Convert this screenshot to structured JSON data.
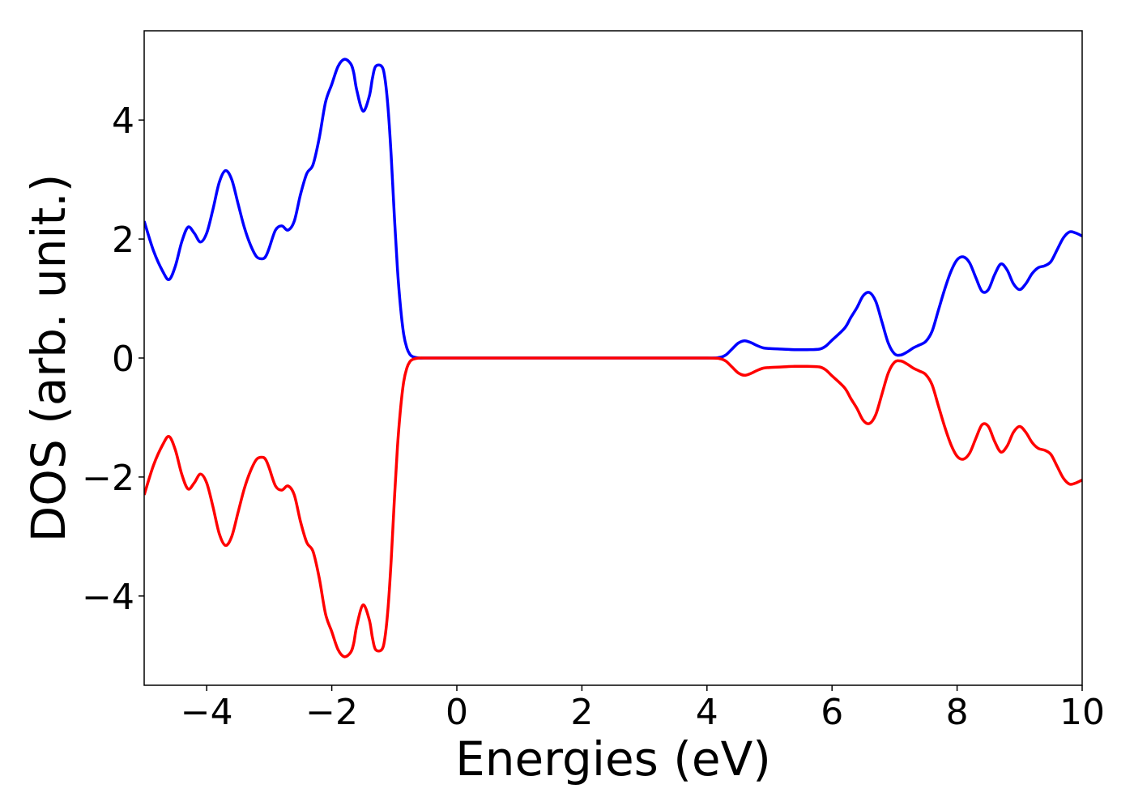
{
  "chart_data": {
    "type": "line",
    "xlabel": "Energies (eV)",
    "ylabel": "DOS (arb. unit.)",
    "xlim": [
      -5,
      10
    ],
    "ylim": [
      -5.5,
      5.5
    ],
    "grid": false,
    "legend": "none",
    "x_ticks": [
      {
        "value": -4,
        "label": "−4"
      },
      {
        "value": -2,
        "label": "−2"
      },
      {
        "value": 0,
        "label": "0"
      },
      {
        "value": 2,
        "label": "2"
      },
      {
        "value": 4,
        "label": "4"
      },
      {
        "value": 6,
        "label": "6"
      },
      {
        "value": 8,
        "label": "8"
      },
      {
        "value": 10,
        "label": "10"
      }
    ],
    "y_ticks": [
      {
        "value": -4,
        "label": "−4"
      },
      {
        "value": -2,
        "label": "−2"
      },
      {
        "value": 0,
        "label": "0"
      },
      {
        "value": 2,
        "label": "2"
      },
      {
        "value": 4,
        "label": "4"
      }
    ],
    "series": [
      {
        "color": "#0000ff",
        "x": [
          -5.0,
          -4.85,
          -4.7,
          -4.6,
          -4.5,
          -4.4,
          -4.3,
          -4.2,
          -4.1,
          -4.0,
          -3.9,
          -3.8,
          -3.7,
          -3.6,
          -3.5,
          -3.4,
          -3.3,
          -3.2,
          -3.1,
          -3.05,
          -3.0,
          -2.9,
          -2.8,
          -2.7,
          -2.6,
          -2.5,
          -2.4,
          -2.3,
          -2.2,
          -2.1,
          -2.0,
          -1.9,
          -1.8,
          -1.7,
          -1.65,
          -1.6,
          -1.5,
          -1.4,
          -1.35,
          -1.3,
          -1.2,
          -1.15,
          -1.1,
          -1.05,
          -1.0,
          -0.95,
          -0.9,
          -0.85,
          -0.8,
          -0.75,
          -0.7,
          -0.6,
          -0.5,
          -0.4,
          0.0,
          1.0,
          2.0,
          3.0,
          4.0,
          4.2,
          4.3,
          4.4,
          4.5,
          4.6,
          4.7,
          4.8,
          4.9,
          5.0,
          5.2,
          5.4,
          5.6,
          5.8,
          5.9,
          6.0,
          6.2,
          6.3,
          6.4,
          6.5,
          6.6,
          6.7,
          6.8,
          6.9,
          7.0,
          7.1,
          7.2,
          7.3,
          7.4,
          7.5,
          7.6,
          7.7,
          7.8,
          7.9,
          8.0,
          8.1,
          8.2,
          8.3,
          8.4,
          8.5,
          8.6,
          8.7,
          8.8,
          8.9,
          9.0,
          9.1,
          9.2,
          9.3,
          9.4,
          9.5,
          9.6,
          9.7,
          9.8,
          9.9,
          10.0
        ],
        "y": [
          2.3,
          1.8,
          1.45,
          1.32,
          1.55,
          1.95,
          2.2,
          2.1,
          1.95,
          2.1,
          2.5,
          2.95,
          3.15,
          3.0,
          2.6,
          2.2,
          1.9,
          1.7,
          1.67,
          1.72,
          1.85,
          2.15,
          2.22,
          2.15,
          2.3,
          2.75,
          3.1,
          3.25,
          3.7,
          4.3,
          4.6,
          4.9,
          5.02,
          4.95,
          4.8,
          4.5,
          4.15,
          4.4,
          4.7,
          4.9,
          4.9,
          4.7,
          4.2,
          3.4,
          2.4,
          1.5,
          0.85,
          0.4,
          0.17,
          0.06,
          0.02,
          0.0,
          0.0,
          0.0,
          0.0,
          0.0,
          0.0,
          0.0,
          0.0,
          0.01,
          0.05,
          0.15,
          0.25,
          0.29,
          0.26,
          0.21,
          0.17,
          0.16,
          0.15,
          0.14,
          0.14,
          0.15,
          0.2,
          0.3,
          0.5,
          0.68,
          0.85,
          1.05,
          1.1,
          0.95,
          0.6,
          0.25,
          0.07,
          0.05,
          0.1,
          0.17,
          0.22,
          0.28,
          0.45,
          0.8,
          1.15,
          1.45,
          1.65,
          1.7,
          1.6,
          1.35,
          1.12,
          1.15,
          1.4,
          1.58,
          1.48,
          1.25,
          1.15,
          1.25,
          1.42,
          1.52,
          1.55,
          1.62,
          1.82,
          2.02,
          2.12,
          2.1,
          2.05
        ]
      },
      {
        "color": "#ff0000",
        "x": [
          -5.0,
          -4.85,
          -4.7,
          -4.6,
          -4.5,
          -4.4,
          -4.3,
          -4.2,
          -4.1,
          -4.0,
          -3.9,
          -3.8,
          -3.7,
          -3.6,
          -3.5,
          -3.4,
          -3.3,
          -3.2,
          -3.1,
          -3.05,
          -3.0,
          -2.9,
          -2.8,
          -2.7,
          -2.6,
          -2.5,
          -2.4,
          -2.3,
          -2.2,
          -2.1,
          -2.0,
          -1.9,
          -1.8,
          -1.7,
          -1.65,
          -1.6,
          -1.5,
          -1.4,
          -1.35,
          -1.3,
          -1.2,
          -1.15,
          -1.1,
          -1.05,
          -1.0,
          -0.95,
          -0.9,
          -0.85,
          -0.8,
          -0.75,
          -0.7,
          -0.6,
          -0.5,
          -0.4,
          0.0,
          1.0,
          2.0,
          3.0,
          4.0,
          4.2,
          4.3,
          4.4,
          4.5,
          4.6,
          4.7,
          4.8,
          4.9,
          5.0,
          5.2,
          5.4,
          5.6,
          5.8,
          5.9,
          6.0,
          6.2,
          6.3,
          6.4,
          6.5,
          6.6,
          6.7,
          6.8,
          6.9,
          7.0,
          7.1,
          7.2,
          7.3,
          7.4,
          7.5,
          7.6,
          7.7,
          7.8,
          7.9,
          8.0,
          8.1,
          8.2,
          8.3,
          8.4,
          8.5,
          8.6,
          8.7,
          8.8,
          8.9,
          9.0,
          9.1,
          9.2,
          9.3,
          9.4,
          9.5,
          9.6,
          9.7,
          9.8,
          9.9,
          10.0
        ],
        "y": [
          -2.3,
          -1.8,
          -1.45,
          -1.32,
          -1.55,
          -1.95,
          -2.2,
          -2.1,
          -1.95,
          -2.1,
          -2.5,
          -2.95,
          -3.15,
          -3.0,
          -2.6,
          -2.2,
          -1.9,
          -1.7,
          -1.67,
          -1.72,
          -1.85,
          -2.15,
          -2.22,
          -2.15,
          -2.3,
          -2.75,
          -3.1,
          -3.25,
          -3.7,
          -4.3,
          -4.6,
          -4.9,
          -5.02,
          -4.95,
          -4.8,
          -4.5,
          -4.15,
          -4.4,
          -4.7,
          -4.9,
          -4.9,
          -4.7,
          -4.2,
          -3.4,
          -2.4,
          -1.5,
          -0.85,
          -0.4,
          -0.17,
          -0.06,
          -0.02,
          0.0,
          0.0,
          0.0,
          0.0,
          0.0,
          0.0,
          0.0,
          0.0,
          -0.01,
          -0.05,
          -0.15,
          -0.25,
          -0.29,
          -0.26,
          -0.21,
          -0.17,
          -0.16,
          -0.15,
          -0.14,
          -0.14,
          -0.15,
          -0.2,
          -0.3,
          -0.5,
          -0.68,
          -0.85,
          -1.05,
          -1.1,
          -0.95,
          -0.6,
          -0.25,
          -0.07,
          -0.05,
          -0.1,
          -0.17,
          -0.22,
          -0.28,
          -0.45,
          -0.8,
          -1.15,
          -1.45,
          -1.65,
          -1.7,
          -1.6,
          -1.35,
          -1.12,
          -1.15,
          -1.4,
          -1.58,
          -1.48,
          -1.25,
          -1.15,
          -1.25,
          -1.42,
          -1.52,
          -1.55,
          -1.62,
          -1.82,
          -2.02,
          -2.12,
          -2.1,
          -2.05
        ]
      }
    ]
  }
}
